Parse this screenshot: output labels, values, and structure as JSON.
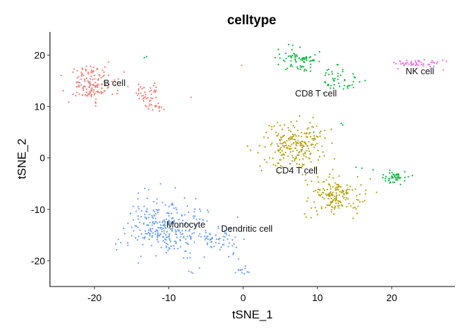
{
  "chart_data": {
    "type": "scatter",
    "title": "celltype",
    "xlabel": "tSNE_1",
    "ylabel": "tSNE_2",
    "xlim": [
      -26,
      28.5
    ],
    "ylim": [
      -25,
      24.5
    ],
    "xticks": [
      -20,
      -10,
      0,
      10,
      20
    ],
    "yticks": [
      -20,
      -10,
      0,
      10,
      20
    ],
    "grid": false,
    "legend": "none",
    "series": [
      {
        "name": "B cell",
        "color": "#F8766D",
        "clusters": [
          {
            "cx": -20.5,
            "cy": 14.5,
            "sx": 1.8,
            "sy": 2.0,
            "n": 150
          },
          {
            "cx": -13.0,
            "cy": 12.5,
            "sx": 1.2,
            "sy": 1.2,
            "n": 40
          },
          {
            "cx": -12.0,
            "cy": 10.0,
            "sx": 0.8,
            "sy": 0.6,
            "n": 15
          }
        ],
        "points": [
          [
            -7.0,
            11.8
          ],
          [
            -0.2,
            18.0
          ]
        ]
      },
      {
        "name": "CD8 T cell",
        "color": "#00BA38",
        "clusters": [
          {
            "cx": 7.5,
            "cy": 19.0,
            "sx": 1.5,
            "sy": 1.3,
            "n": 75
          },
          {
            "cx": 12.5,
            "cy": 15.0,
            "sx": 1.8,
            "sy": 1.4,
            "n": 50
          },
          {
            "cx": 20.3,
            "cy": -3.8,
            "sx": 1.0,
            "sy": 0.8,
            "n": 50
          }
        ],
        "points": [
          [
            -13.3,
            19.5
          ],
          [
            -13.0,
            19.7
          ],
          [
            13.2,
            6.7
          ],
          [
            13.4,
            6.4
          ],
          [
            9.5,
            5.0
          ],
          [
            16.0,
            -2.0
          ],
          [
            17.5,
            -2.3
          ],
          [
            15.2,
            -1.8
          ]
        ]
      },
      {
        "name": "CD4 T cell",
        "color": "#B79F00",
        "clusters": [
          {
            "cx": 7.0,
            "cy": 2.5,
            "sx": 2.5,
            "sy": 2.8,
            "n": 230
          },
          {
            "cx": 12.5,
            "cy": -7.5,
            "sx": 2.2,
            "sy": 2.0,
            "n": 170
          }
        ],
        "points": [
          [
            0.6,
            2.3
          ],
          [
            1.0,
            1.5
          ],
          [
            2.0,
            1.0
          ]
        ]
      },
      {
        "name": "NK cell",
        "color": "#F564E3",
        "clusters": [
          {
            "cx": 23.0,
            "cy": 18.3,
            "sx": 2.0,
            "sy": 0.6,
            "n": 50
          }
        ],
        "points": []
      },
      {
        "name": "Monocyte",
        "color": "#619CFF",
        "clusters": [
          {
            "cx": -10.5,
            "cy": -13.5,
            "sx": 3.2,
            "sy": 3.2,
            "n": 290
          },
          {
            "cx": -3.0,
            "cy": -16.0,
            "sx": 1.6,
            "sy": 2.0,
            "n": 60
          },
          {
            "cx": 0.0,
            "cy": -22.0,
            "sx": 0.8,
            "sy": 0.4,
            "n": 12
          }
        ],
        "points": [
          [
            -7.0,
            -22.2
          ],
          [
            -7.3,
            -22.0
          ],
          [
            -6.8,
            -22.4
          ]
        ]
      },
      {
        "name": "Dendritic cell",
        "color": "#619CFF",
        "clusters": [],
        "points": []
      }
    ],
    "annotations": [
      {
        "text": "B cell",
        "x": -17.3,
        "y": 14.5
      },
      {
        "text": "CD8 T cell",
        "x": 9.8,
        "y": 12.5
      },
      {
        "text": "NK cell",
        "x": 23.8,
        "y": 16.8
      },
      {
        "text": "CD4 T cell",
        "x": 7.2,
        "y": -2.5
      },
      {
        "text": "Monocyte",
        "x": -7.7,
        "y": -13.0
      },
      {
        "text": "Dendritic cell",
        "x": 0.5,
        "y": -13.8
      }
    ]
  }
}
